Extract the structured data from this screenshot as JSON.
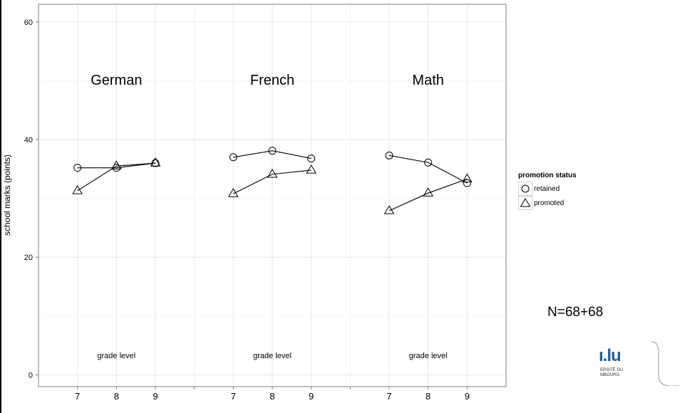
{
  "chart_data": {
    "type": "line",
    "ylabel": "school marks (points)",
    "ylim": [
      -2,
      63
    ],
    "yticks": [
      0,
      20,
      40,
      60
    ],
    "grid": true,
    "legend": {
      "title": "promotion status",
      "placement": "right",
      "entries": [
        "retained",
        "promoted"
      ]
    },
    "panels": [
      {
        "title": "German",
        "xlabel": "grade level",
        "x": [
          7,
          8,
          9
        ],
        "series": [
          {
            "name": "retained",
            "marker": "circle",
            "values": [
              35.2,
              35.2,
              36.0
            ]
          },
          {
            "name": "promoted",
            "marker": "triangle",
            "values": [
              31.3,
              35.5,
              36.0
            ]
          }
        ]
      },
      {
        "title": "French",
        "xlabel": "grade level",
        "x": [
          7,
          8,
          9
        ],
        "series": [
          {
            "name": "retained",
            "marker": "circle",
            "values": [
              37.0,
              38.1,
              36.8
            ]
          },
          {
            "name": "promoted",
            "marker": "triangle",
            "values": [
              30.8,
              34.1,
              34.8
            ]
          }
        ]
      },
      {
        "title": "Math",
        "xlabel": "grade level",
        "x": [
          7,
          8,
          9
        ],
        "series": [
          {
            "name": "retained",
            "marker": "circle",
            "values": [
              37.3,
              36.1,
              32.6
            ]
          },
          {
            "name": "promoted",
            "marker": "triangle",
            "values": [
              27.9,
              30.9,
              33.3
            ]
          }
        ]
      }
    ]
  },
  "annotation": "N=68+68",
  "logo": {
    "mark": "ı.lu",
    "line1": "ERSITÉ DU",
    "line2": "MBOURG",
    "accent_color": "#1f5d9c"
  }
}
